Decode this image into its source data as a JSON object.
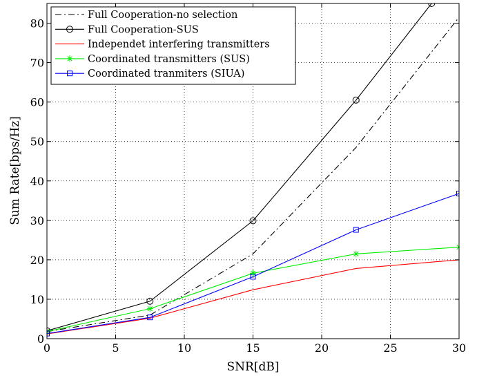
{
  "chart_data": {
    "type": "line",
    "xlabel": "SNR[dB]",
    "ylabel": "Sum Rate[bps/Hz]",
    "xlim": [
      0,
      30
    ],
    "ylim": [
      0,
      85
    ],
    "xticks": [
      0,
      5,
      10,
      15,
      20,
      25,
      30
    ],
    "yticks": [
      0,
      10,
      20,
      30,
      40,
      50,
      60,
      70,
      80
    ],
    "grid": true,
    "legend_position": "top-left",
    "series": [
      {
        "name": "Full Cooperation-no selection",
        "color": "#000000",
        "dash": "dashdot",
        "marker": "none",
        "x": [
          0,
          7.5,
          15,
          22.5,
          30
        ],
        "y": [
          1.8,
          6.0,
          21.5,
          48.5,
          81.5
        ]
      },
      {
        "name": "Full Cooperation-SUS",
        "color": "#000000",
        "dash": "solid",
        "marker": "circle",
        "x": [
          0,
          7.5,
          15,
          22.5,
          28
        ],
        "y": [
          2.0,
          9.5,
          29.9,
          60.5,
          85
        ]
      },
      {
        "name": "Independet interfering transmitters",
        "color": "#ff0000",
        "dash": "solid",
        "marker": "none",
        "x": [
          0,
          7.5,
          15,
          22.5,
          30
        ],
        "y": [
          1.2,
          5.2,
          12.4,
          17.8,
          20.0
        ]
      },
      {
        "name": "Coordinated transmitters (SUS)",
        "color": "#00ee00",
        "dash": "solid",
        "marker": "star",
        "x": [
          0,
          7.5,
          15,
          22.5,
          30
        ],
        "y": [
          1.8,
          7.6,
          16.6,
          21.5,
          23.2
        ]
      },
      {
        "name": "Coordinated tranmiters (SIUA)",
        "color": "#0000ff",
        "dash": "solid",
        "marker": "square",
        "x": [
          0,
          7.5,
          15,
          22.5,
          30
        ],
        "y": [
          1.3,
          5.4,
          15.7,
          27.6,
          36.8
        ]
      }
    ]
  }
}
